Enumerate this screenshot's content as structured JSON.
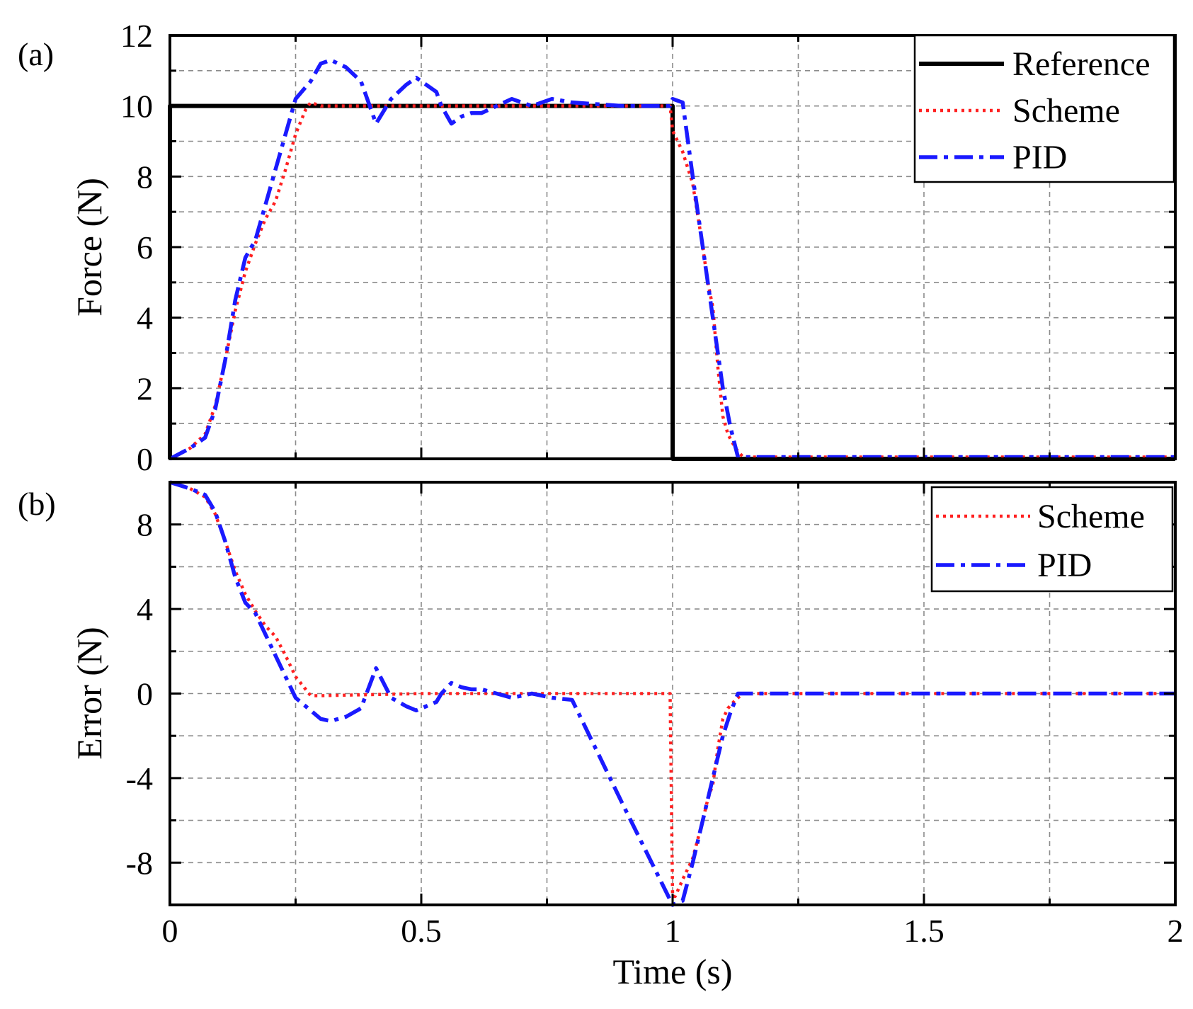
{
  "chart_data": [
    {
      "type": "line",
      "panel_label": "(a)",
      "title": "",
      "xlabel": "",
      "ylabel": "Force (N)",
      "xlim": [
        0,
        2
      ],
      "ylim": [
        0,
        12
      ],
      "grid": true,
      "x_ticks": [
        0,
        0.5,
        1,
        1.5,
        2
      ],
      "y_ticks": [
        "0",
        "2",
        "4",
        "6",
        "8",
        "10",
        "12"
      ],
      "legend_position": "top-right",
      "series": [
        {
          "name": "Reference",
          "style": "solid",
          "color": "#000000",
          "x": [
            0,
            0.0001,
            1.0,
            1.0001,
            2
          ],
          "y": [
            0,
            10,
            10,
            0,
            0
          ]
        },
        {
          "name": "Scheme",
          "style": "dotted",
          "color": "#ff2020",
          "x": [
            0,
            0.04,
            0.07,
            0.09,
            0.11,
            0.13,
            0.15,
            0.17,
            0.19,
            0.21,
            0.23,
            0.25,
            0.27,
            0.28,
            0.3,
            0.5,
            0.7,
            0.9,
            0.995,
            1.0,
            1.02,
            1.04,
            1.06,
            1.07,
            1.08,
            1.09,
            1.1,
            1.11,
            1.125,
            1.14,
            2
          ],
          "y": [
            0,
            0.3,
            0.7,
            1.5,
            2.8,
            4.2,
            5.3,
            6.1,
            6.8,
            7.3,
            8.2,
            9.2,
            9.9,
            10.1,
            10.0,
            10.0,
            10.0,
            10.0,
            10.0,
            9.3,
            8.7,
            7.8,
            6.0,
            5.0,
            4.3,
            2.6,
            1.2,
            0.7,
            0.3,
            0.05,
            0.05
          ]
        },
        {
          "name": "PID",
          "style": "dashdot",
          "color": "#1a1aff",
          "x": [
            0,
            0.04,
            0.07,
            0.09,
            0.11,
            0.13,
            0.15,
            0.17,
            0.19,
            0.21,
            0.23,
            0.25,
            0.28,
            0.3,
            0.32,
            0.35,
            0.38,
            0.41,
            0.44,
            0.47,
            0.49,
            0.51,
            0.53,
            0.54,
            0.56,
            0.58,
            0.6,
            0.62,
            0.65,
            0.68,
            0.72,
            0.76,
            0.8,
            0.9,
            0.995,
            1.0,
            1.02,
            1.04,
            1.06,
            1.08,
            1.1,
            1.115,
            1.13,
            2
          ],
          "y": [
            0,
            0.3,
            0.6,
            1.4,
            2.8,
            4.5,
            5.7,
            6.2,
            7.2,
            8.2,
            9.2,
            10.2,
            10.7,
            11.2,
            11.3,
            11.1,
            10.7,
            9.5,
            10.2,
            10.6,
            10.8,
            10.6,
            10.4,
            10.0,
            9.5,
            9.7,
            9.8,
            9.8,
            10.0,
            10.2,
            10.0,
            10.2,
            10.1,
            10.0,
            10.0,
            10.2,
            10.1,
            8.0,
            6.0,
            4.0,
            2.0,
            0.9,
            0.05,
            0.05
          ]
        }
      ]
    },
    {
      "type": "line",
      "panel_label": "(b)",
      "title": "",
      "xlabel": "Time (s)",
      "ylabel": "Error (N)",
      "xlim": [
        0,
        2
      ],
      "ylim": [
        -10,
        10
      ],
      "grid": true,
      "x_ticks": [
        0,
        0.5,
        1,
        1.5,
        2
      ],
      "x_tick_labels": [
        "0",
        "0.5",
        "1",
        "1.5",
        "2"
      ],
      "y_ticks": [
        "-8",
        "-4",
        "0",
        "4",
        "8"
      ],
      "legend_position": "top-right",
      "series": [
        {
          "name": "Scheme",
          "style": "dotted",
          "color": "#ff2020",
          "x": [
            0,
            0.04,
            0.07,
            0.09,
            0.11,
            0.13,
            0.15,
            0.17,
            0.19,
            0.21,
            0.23,
            0.25,
            0.28,
            0.3,
            0.5,
            0.7,
            0.9,
            0.995,
            1.0,
            1.005,
            1.02,
            1.04,
            1.06,
            1.07,
            1.08,
            1.09,
            1.1,
            1.11,
            1.125,
            1.14,
            2
          ],
          "y": [
            10,
            9.7,
            9.3,
            8.5,
            7.2,
            5.8,
            4.7,
            3.9,
            3.2,
            2.7,
            1.8,
            0.8,
            -0.1,
            -0.1,
            0.0,
            0.0,
            0.0,
            0.0,
            -9.6,
            -9.6,
            -8.8,
            -7.8,
            -6.0,
            -5.0,
            -4.3,
            -2.6,
            -1.2,
            -0.7,
            -0.3,
            0.0,
            0.0
          ]
        },
        {
          "name": "PID",
          "style": "dashdot",
          "color": "#1a1aff",
          "x": [
            0,
            0.04,
            0.07,
            0.09,
            0.11,
            0.13,
            0.15,
            0.17,
            0.19,
            0.21,
            0.23,
            0.25,
            0.28,
            0.3,
            0.32,
            0.35,
            0.38,
            0.41,
            0.44,
            0.47,
            0.49,
            0.51,
            0.53,
            0.54,
            0.56,
            0.58,
            0.6,
            0.62,
            0.65,
            0.68,
            0.72,
            0.76,
            0.8,
            0.9,
            1.0,
            1.02,
            1.04,
            1.06,
            1.08,
            1.1,
            1.115,
            1.13,
            2
          ],
          "y": [
            10,
            9.7,
            9.4,
            8.6,
            7.2,
            5.5,
            4.3,
            3.8,
            2.8,
            1.8,
            0.8,
            -0.2,
            -0.8,
            -1.2,
            -1.3,
            -1.1,
            -0.7,
            1.2,
            -0.2,
            -0.6,
            -0.8,
            -0.6,
            -0.4,
            0.0,
            0.5,
            0.3,
            0.2,
            0.2,
            0.0,
            -0.2,
            0.0,
            -0.2,
            -0.3,
            -5.2,
            -10.0,
            -9.8,
            -8.0,
            -6.0,
            -4.0,
            -2.0,
            -0.9,
            0.0,
            0.0
          ]
        }
      ]
    }
  ]
}
